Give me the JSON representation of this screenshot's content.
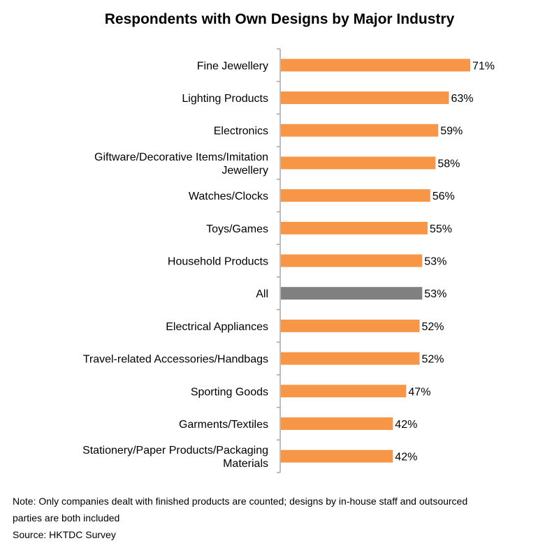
{
  "chart_data": {
    "type": "bar",
    "orientation": "horizontal",
    "title": "Respondents with Own Designs by Major Industry",
    "categories": [
      "Fine Jewellery",
      "Lighting Products",
      "Electronics",
      "Giftware/Decorative Items/Imitation Jewellery",
      "Watches/Clocks",
      "Toys/Games",
      "Household Products",
      "All",
      "Electrical Appliances",
      "Travel-related Accessories/Handbags",
      "Sporting Goods",
      "Garments/Textiles",
      "Stationery/Paper Products/Packaging Materials"
    ],
    "category_lines": [
      [
        "Fine Jewellery"
      ],
      [
        "Lighting Products"
      ],
      [
        "Electronics"
      ],
      [
        "Giftware/Decorative Items/Imitation",
        "Jewellery"
      ],
      [
        "Watches/Clocks"
      ],
      [
        "Toys/Games"
      ],
      [
        "Household Products"
      ],
      [
        "All"
      ],
      [
        "Electrical Appliances"
      ],
      [
        "Travel-related Accessories/Handbags"
      ],
      [
        "Sporting Goods"
      ],
      [
        "Garments/Textiles"
      ],
      [
        "Stationery/Paper Products/Packaging",
        "Materials"
      ]
    ],
    "values": [
      71,
      63,
      59,
      58,
      56,
      55,
      53,
      53,
      52,
      52,
      47,
      42,
      42
    ],
    "value_labels": [
      "71%",
      "63%",
      "59%",
      "58%",
      "56%",
      "55%",
      "53%",
      "53%",
      "52%",
      "52%",
      "47%",
      "42%",
      "42%"
    ],
    "unit": "%",
    "xlim": [
      0,
      71
    ],
    "highlight_category": "All",
    "colors": {
      "bar": "#F79646",
      "highlight": "#808080",
      "axis": "#A6A6A6"
    },
    "grid": false,
    "legend": "none"
  },
  "notes": {
    "note_line1": "Note: Only companies dealt with finished products are counted; designs by in-house staff and outsourced",
    "note_line2": "parties are both included",
    "source": "Source: HKTDC Survey"
  }
}
